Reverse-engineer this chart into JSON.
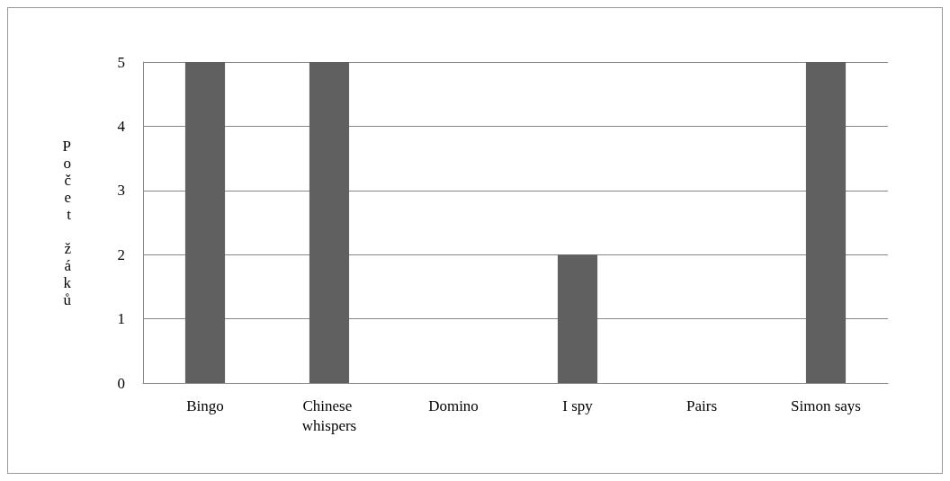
{
  "chart_data": {
    "type": "bar",
    "ylabel": "Počet žáků",
    "categories": [
      "Bingo",
      "Chinese whispers",
      "Domino",
      "I spy",
      "Pairs",
      "Simon says"
    ],
    "values": [
      5,
      5,
      0,
      2,
      0,
      5
    ],
    "color": "#606060",
    "ylim": [
      0,
      5
    ],
    "yticks": [
      0,
      1,
      2,
      3,
      4,
      5
    ],
    "grid": "y"
  }
}
